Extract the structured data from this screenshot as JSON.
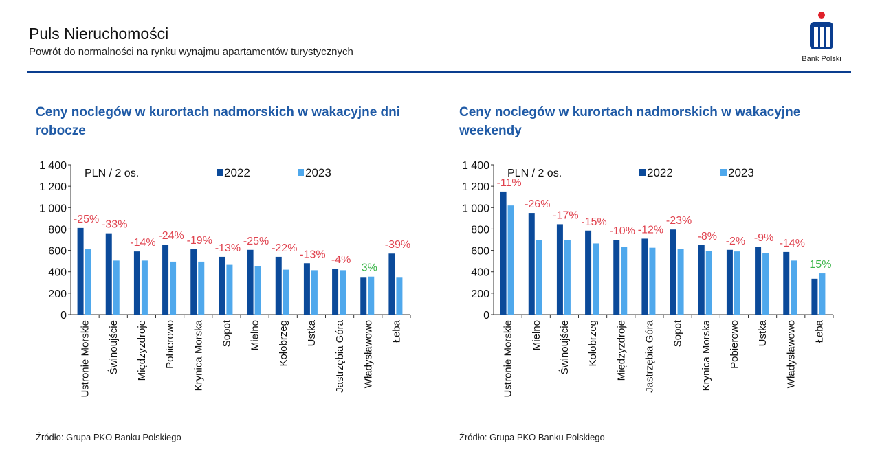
{
  "header": {
    "title": "Puls Nieruchomości",
    "subtitle": "Powrót do normalności na rynku wynajmu apartamentów turystycznych",
    "logo_text": "Bank Polski"
  },
  "colors": {
    "s2022": "#0b4a9a",
    "s2023": "#4fa8ec",
    "neg": "#e0434f",
    "pos": "#3cb54a",
    "accent": "#1f5aa6"
  },
  "chart_data": [
    {
      "type": "bar",
      "title": "Ceny noclegów w kurortach nadmorskich w wakacyjne dni robocze",
      "unit_label": "PLN / 2 os.",
      "ylim": [
        0,
        1400
      ],
      "yticks": [
        "0",
        "200",
        "400",
        "600",
        "800",
        "1 000",
        "1 200",
        "1 400"
      ],
      "legend": "top",
      "categories": [
        "Ustronie Morskie",
        "Świnoujście",
        "Międzyzdroje",
        "Pobierowo",
        "Krynica Morska",
        "Sopot",
        "Mielno",
        "Kołobrzeg",
        "Ustka",
        "Jastrzębia Góra",
        "Władysławowo",
        "Łeba"
      ],
      "series": [
        {
          "name": "2022",
          "values": [
            810,
            760,
            590,
            655,
            610,
            540,
            605,
            540,
            480,
            430,
            345,
            570
          ]
        },
        {
          "name": "2023",
          "values": [
            610,
            505,
            505,
            495,
            495,
            465,
            455,
            420,
            415,
            415,
            355,
            345
          ]
        }
      ],
      "annotations": [
        "-25%",
        "-33%",
        "-14%",
        "-24%",
        "-19%",
        "-13%",
        "-25%",
        "-22%",
        "-13%",
        "-4%",
        "3%",
        "-39%"
      ],
      "source": "Źródło: Grupa PKO Banku Polskiego"
    },
    {
      "type": "bar",
      "title": "Ceny noclegów w kurortach nadmorskich w wakacyjne weekendy",
      "unit_label": "PLN / 2 os.",
      "ylim": [
        0,
        1400
      ],
      "yticks": [
        "0",
        "200",
        "400",
        "600",
        "800",
        "1 000",
        "1 200",
        "1 400"
      ],
      "legend": "top",
      "categories": [
        "Ustronie Morskie",
        "Mielno",
        "Świnoujście",
        "Kołobrzeg",
        "Międzyzdroje",
        "Jastrzębia Góra",
        "Sopot",
        "Krynica Morska",
        "Pobierowo",
        "Ustka",
        "Władysławowo",
        "Łeba"
      ],
      "series": [
        {
          "name": "2022",
          "values": [
            1150,
            950,
            845,
            785,
            700,
            710,
            795,
            650,
            605,
            635,
            585,
            335
          ]
        },
        {
          "name": "2023",
          "values": [
            1020,
            700,
            700,
            665,
            635,
            625,
            615,
            595,
            590,
            575,
            505,
            385
          ]
        }
      ],
      "annotations": [
        "-11%",
        "-26%",
        "-17%",
        "-15%",
        "-10%",
        "-12%",
        "-23%",
        "-8%",
        "-2%",
        "-9%",
        "-14%",
        "15%"
      ],
      "source": "Źródło: Grupa PKO Banku Polskiego"
    }
  ]
}
